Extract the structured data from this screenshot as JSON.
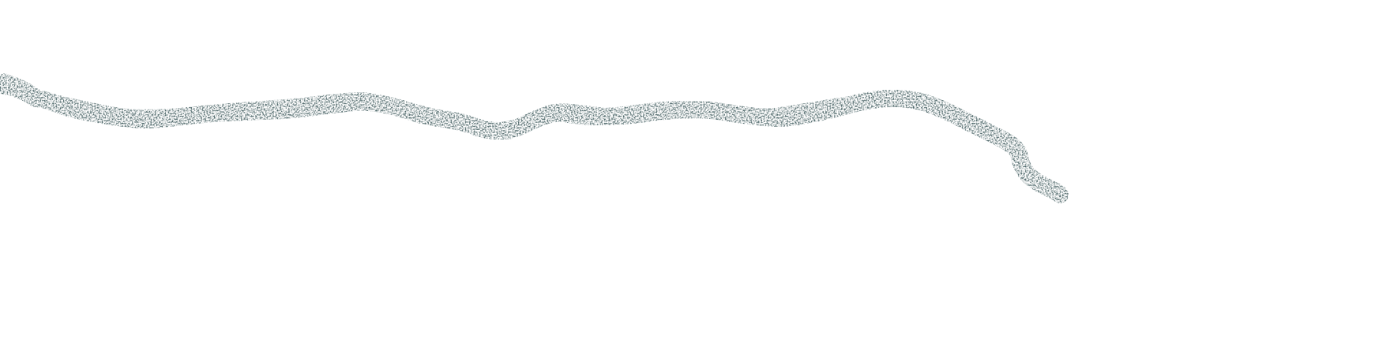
{
  "canvas": {
    "background_color": "#ffffff"
  },
  "stroke": {
    "kind": "textured crayon / pencil stroke",
    "color": "#4a6466"
  }
}
